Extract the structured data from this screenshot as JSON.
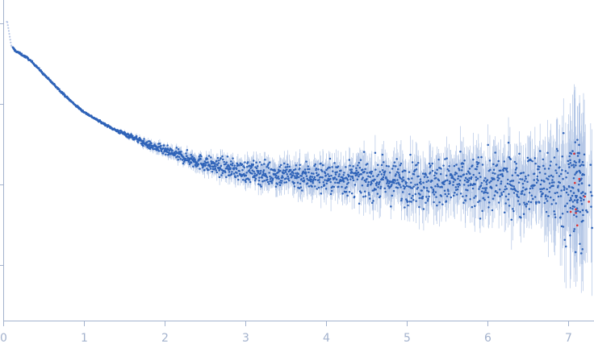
{
  "chart_data": {
    "type": "scatter",
    "title": "",
    "xlabel": "",
    "ylabel": "",
    "xlim": [
      0,
      7.32
    ],
    "ylim": [
      0,
      3.7
    ],
    "y_log_ticks_unlabeled": true,
    "grid": false,
    "legend": "none",
    "x_tick_labels": [
      "0",
      "1",
      "2",
      "3",
      "4",
      "5",
      "6",
      "7"
    ],
    "x_tick_values": [
      0,
      1,
      2,
      3,
      4,
      5,
      6,
      7
    ],
    "y_tick_values": [
      0.7,
      1.7,
      2.7,
      3.7
    ],
    "colors": {
      "axis": "#a3b2cd",
      "points": "#2f63b8",
      "errorbars": "#b3c6e6",
      "faded_points": "#b7c6e6",
      "outliers": "#e03030"
    },
    "series": [
      {
        "name": "",
        "x": [
          0.05,
          0.1,
          0.15,
          0.2,
          0.3,
          0.4,
          0.5,
          0.6,
          0.7,
          0.8,
          0.9,
          1.0,
          1.2,
          1.4,
          1.6,
          1.8,
          2.0,
          2.2,
          2.4,
          2.6,
          2.8,
          3.0,
          3.5,
          4.0,
          4.5,
          5.0,
          5.5,
          6.0,
          6.5,
          6.9,
          7.1,
          7.3
        ],
        "y": [
          3.72,
          3.42,
          3.36,
          3.33,
          3.27,
          3.18,
          3.07,
          2.97,
          2.87,
          2.77,
          2.68,
          2.6,
          2.48,
          2.37,
          2.29,
          2.19,
          2.12,
          2.05,
          1.99,
          1.93,
          1.9,
          1.86,
          1.82,
          1.79,
          1.76,
          1.74,
          1.72,
          1.71,
          1.71,
          1.7,
          1.65,
          1.55
        ]
      }
    ]
  }
}
